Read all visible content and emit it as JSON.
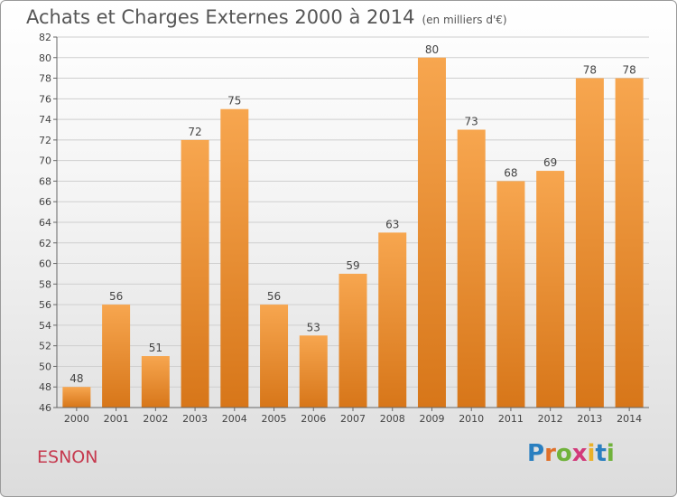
{
  "header": {
    "title": "Achats et Charges Externes 2000 à 2014",
    "subtitle": "(en milliers d'€)"
  },
  "footer": {
    "commune": "ESNON",
    "logo_text": "Proxiti"
  },
  "colors": {
    "bar_top": "#f7a64f",
    "bar_bottom": "#d77619",
    "axis": "#666666",
    "grid": "#cfcfcf",
    "commune": "#c63a4f"
  },
  "chart_data": {
    "type": "bar",
    "title": "Achats et Charges Externes 2000 à 2014",
    "subtitle": "(en milliers d'€)",
    "categories": [
      "2000",
      "2001",
      "2002",
      "2003",
      "2004",
      "2005",
      "2006",
      "2007",
      "2008",
      "2009",
      "2010",
      "2011",
      "2012",
      "2013",
      "2014"
    ],
    "values": [
      48,
      56,
      51,
      72,
      75,
      56,
      53,
      59,
      63,
      80,
      73,
      68,
      69,
      78,
      78
    ],
    "ylim": [
      46,
      82
    ],
    "yticks": [
      46,
      48,
      50,
      52,
      54,
      56,
      58,
      60,
      62,
      64,
      66,
      68,
      70,
      72,
      74,
      76,
      78,
      80,
      82
    ],
    "grid": true,
    "data_labels": true
  }
}
